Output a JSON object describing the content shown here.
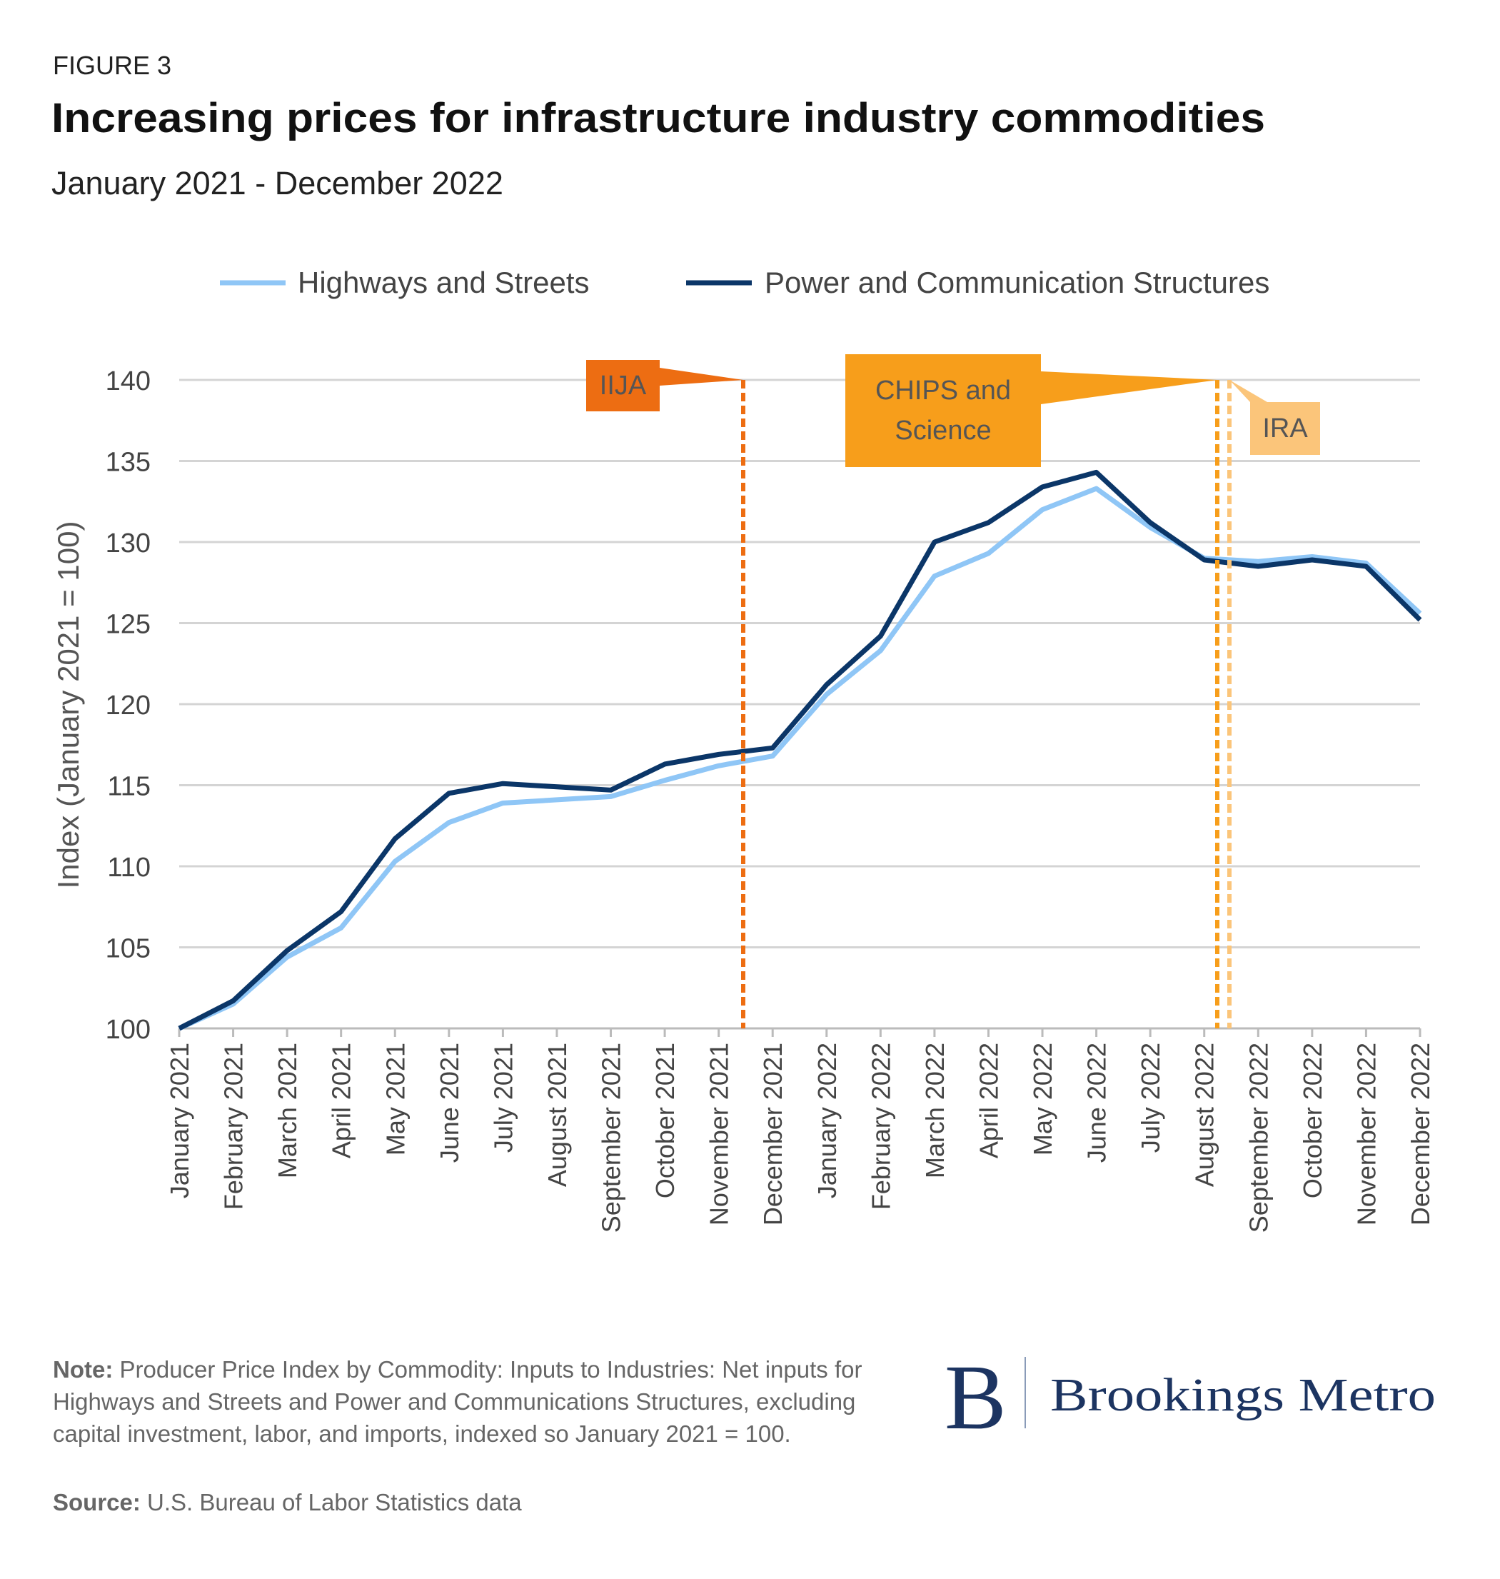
{
  "chart_data": {
    "type": "line",
    "figure_label": "FIGURE 3",
    "title": "Increasing prices for infrastructure industry commodities",
    "subtitle": "January 2021 - December 2022",
    "y_label": "Index (January 2021 = 100)",
    "categories": [
      "January 2021",
      "February 2021",
      "March 2021",
      "April 2021",
      "May 2021",
      "June 2021",
      "July 2021",
      "August 2021",
      "September 2021",
      "October 2021",
      "November 2021",
      "December 2021",
      "January 2022",
      "February 2022",
      "March 2022",
      "April 2022",
      "May 2022",
      "June 2022",
      "July 2022",
      "August 2022",
      "September 2022",
      "October 2022",
      "November 2022",
      "December 2022"
    ],
    "series": [
      {
        "name": "Highways and Streets",
        "color": "#8fc6f6",
        "values": [
          100,
          101.5,
          104.4,
          106.2,
          110.3,
          112.7,
          113.9,
          114.1,
          114.3,
          115.3,
          116.2,
          116.8,
          120.6,
          123.3,
          127.9,
          129.3,
          132,
          133.3,
          130.9,
          129,
          128.8,
          129.1,
          128.7,
          125.6
        ]
      },
      {
        "name": "Power and Communication Structures",
        "color": "#0b3668",
        "values": [
          100,
          101.7,
          104.8,
          107.2,
          111.7,
          114.5,
          115.1,
          114.9,
          114.7,
          116.3,
          116.9,
          117.3,
          121.2,
          124.2,
          130,
          131.2,
          133.4,
          134.3,
          131.2,
          128.9,
          128.5,
          128.9,
          128.5,
          125.2
        ]
      }
    ],
    "ylim": [
      100,
      140
    ],
    "yticks": [
      100,
      105,
      110,
      115,
      120,
      125,
      130,
      135,
      140
    ],
    "grid": true,
    "annotations": [
      "IIJA",
      "CHIPS and Science",
      "IRA"
    ],
    "note_label": "Note:",
    "note": "Producer Price Index by Commodity: Inputs to Industries: Net inputs for Highways and Streets and Power and Communications Structures, excluding capital investment, labor, and imports, indexed so January 2021 = 100.",
    "source_label": "Source:",
    "source": "U.S. Bureau of Labor Statistics data",
    "logo_mark": "B",
    "logo_text": "Brookings Metro"
  }
}
